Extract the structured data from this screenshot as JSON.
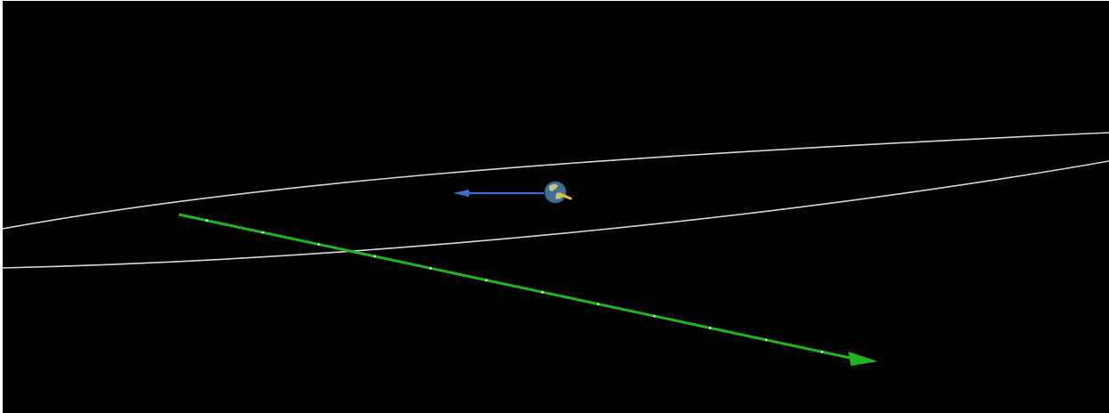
{
  "scene": {
    "background_color": "#000000",
    "frame_color": "#ffffff",
    "orbit_color": "#d8d8d8",
    "earth": {
      "icon": "earth-globe-icon",
      "ocean_color": "#3f6f93",
      "land_color": "#c9c08a",
      "velocity_arrow_color": "#3d6fd0",
      "marker_color": "#e8c21a"
    },
    "asteroid_path": {
      "icon": "arrowhead-icon",
      "color": "#22b41f",
      "marker_color": "#d9ffd9",
      "marker_count": 12
    }
  }
}
